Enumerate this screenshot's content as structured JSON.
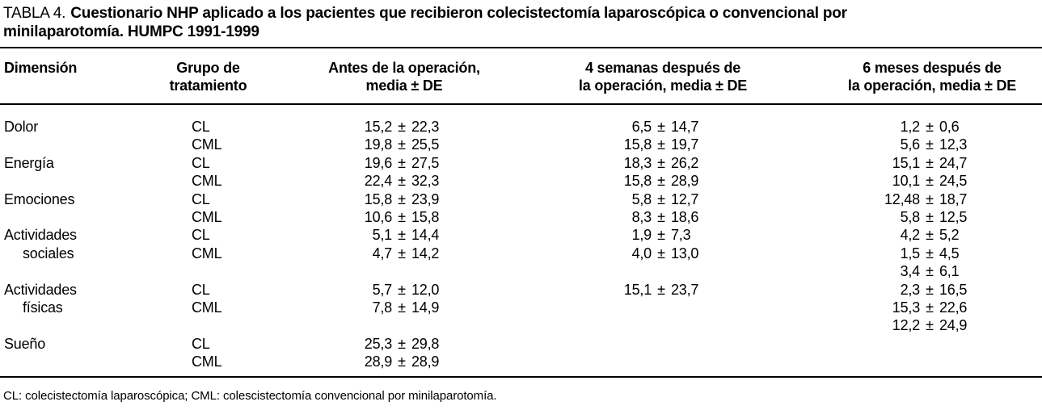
{
  "title": {
    "label": "TABLA 4.",
    "line1": "Cuestionario NHP aplicado a los pacientes que recibieron colecistectomía laparoscópica o convencional por",
    "line2": "minilaparotomía. HUMPC 1991-1999"
  },
  "table": {
    "headers": [
      "Dimensión",
      "Grupo de\ntratamiento",
      "Antes de la operación,\nmedia ± DE",
      "4 semanas después de\nla operación, media ± DE",
      "6 meses después de\nla operación, media ± DE"
    ],
    "rows": [
      {
        "dimension": "Dolor",
        "indent": false,
        "group": "CL",
        "before": "15,2 ± 22,3",
        "weeks4": "6,5 ± 14,7",
        "months6": "1,2 ± 0,6"
      },
      {
        "dimension": "",
        "indent": false,
        "group": "CML",
        "before": "19,8 ± 25,5",
        "weeks4": "15,8 ± 19,7",
        "months6": "5,6 ± 12,3"
      },
      {
        "dimension": "Energía",
        "indent": false,
        "group": "CL",
        "before": "19,6 ± 27,5",
        "weeks4": "18,3 ± 26,2",
        "months6": "15,1 ± 24,7"
      },
      {
        "dimension": "",
        "indent": false,
        "group": "CML",
        "before": "22,4 ± 32,3",
        "weeks4": "15,8 ± 28,9",
        "months6": "10,1 ± 24,5"
      },
      {
        "dimension": "Emociones",
        "indent": false,
        "group": "CL",
        "before": "15,8 ± 23,9",
        "weeks4": "5,8 ± 12,7",
        "months6": "12,48 ± 18,7"
      },
      {
        "dimension": "",
        "indent": false,
        "group": "CML",
        "before": "10,6 ± 15,8",
        "weeks4": "8,3 ± 18,6",
        "months6": "5,8 ± 12,5"
      },
      {
        "dimension": "Actividades",
        "indent": false,
        "group": "CL",
        "before": "5,1 ± 14,4",
        "weeks4": "1,9 ± 7,3",
        "months6": "4,2 ± 5,2"
      },
      {
        "dimension": "sociales",
        "indent": true,
        "group": "CML",
        "before": "4,7 ± 14,2",
        "weeks4": "4,0 ± 13,0",
        "months6": "1,5 ± 4,5"
      },
      {
        "dimension": "",
        "indent": false,
        "group": "",
        "before": "",
        "weeks4": "",
        "months6": "3,4 ± 6,1"
      },
      {
        "dimension": "Actividades",
        "indent": false,
        "group": "CL",
        "before": "5,7 ± 12,0",
        "weeks4": "15,1 ± 23,7",
        "months6": "2,3 ± 16,5"
      },
      {
        "dimension": "físicas",
        "indent": true,
        "group": "CML",
        "before": "7,8 ± 14,9",
        "weeks4": "",
        "months6": "15,3 ± 22,6"
      },
      {
        "dimension": "",
        "indent": false,
        "group": "",
        "before": "",
        "weeks4": "",
        "months6": "12,2 ± 24,9"
      },
      {
        "dimension": "Sueño",
        "indent": false,
        "group": "CL",
        "before": "25,3 ± 29,8",
        "weeks4": "",
        "months6": ""
      },
      {
        "dimension": "",
        "indent": false,
        "group": "CML",
        "before": "28,9 ± 28,9",
        "weeks4": "",
        "months6": ""
      }
    ]
  },
  "footnote": "CL: colecistectomía laparoscópica; CML: colescistectomía convencional por minilaparotomía.",
  "colors": {
    "text": "#000000",
    "background": "#ffffff",
    "rule": "#000000"
  }
}
